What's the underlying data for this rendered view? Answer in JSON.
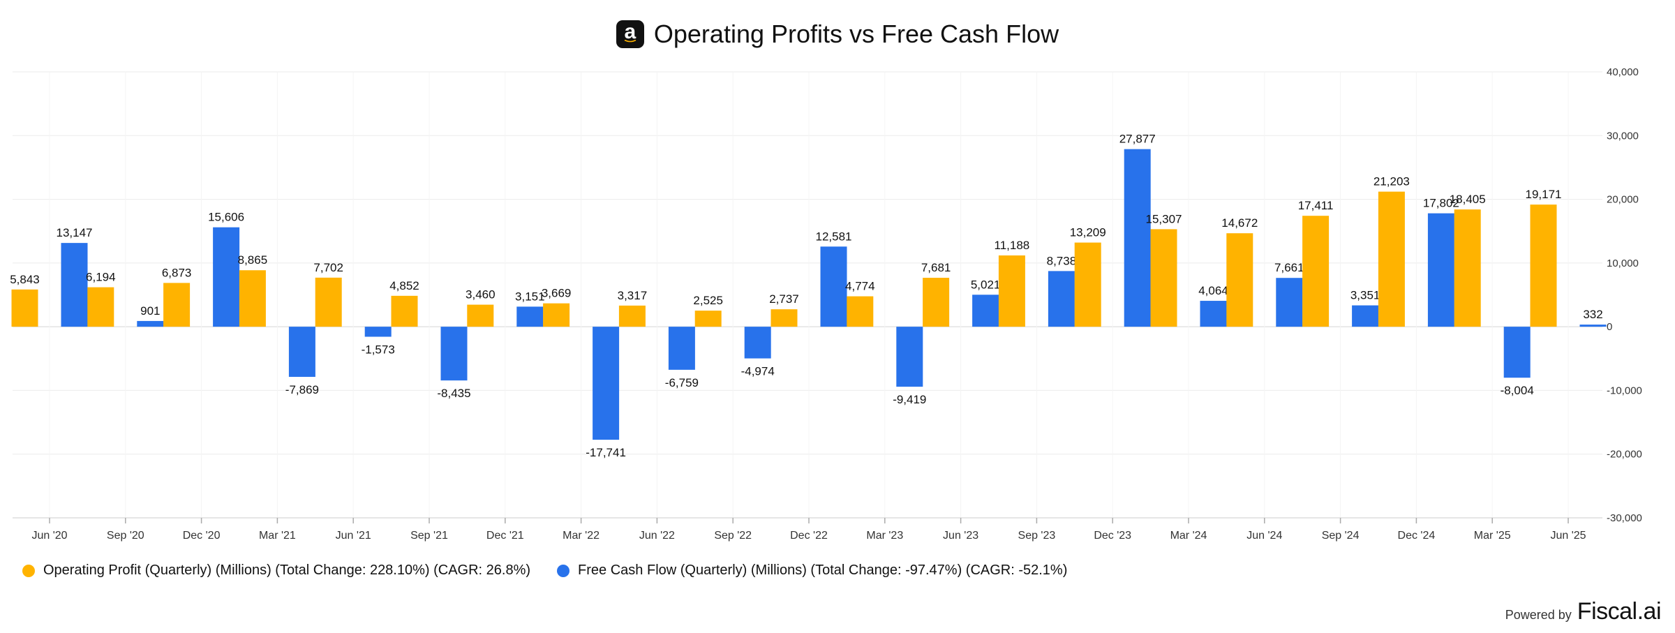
{
  "chart_title": "Operating Profits vs Free Cash Flow",
  "logo_letter": "a",
  "footer": {
    "powered_by": "Powered by",
    "brand": "Fiscal.ai"
  },
  "colors": {
    "operating_profit": "#FFB300",
    "free_cash_flow": "#2872EB",
    "grid": "#EBEBEB",
    "axis": "#DDDDDD"
  },
  "icons": {
    "logo": "amazon-logo-icon"
  },
  "chart_data": {
    "type": "bar",
    "title": "Operating Profits vs Free Cash Flow",
    "categories": [
      "Jun '20",
      "Sep '20",
      "Dec '20",
      "Mar '21",
      "Jun '21",
      "Sep '21",
      "Dec '21",
      "Mar '22",
      "Jun '22",
      "Sep '22",
      "Dec '22",
      "Mar '23",
      "Jun '23",
      "Sep '23",
      "Dec '23",
      "Mar '24",
      "Jun '24",
      "Sep '24",
      "Dec '24",
      "Mar '25",
      "Jun '25"
    ],
    "series": [
      {
        "name": "Operating Profit (Quarterly) (Millions) (Total Change: 228.10%) (CAGR: 26.8%)",
        "values": [
          5843,
          6194,
          6873,
          8865,
          7702,
          4852,
          3460,
          3669,
          3317,
          2525,
          2737,
          4774,
          7681,
          11188,
          13209,
          15307,
          14672,
          17411,
          21203,
          18405,
          19171
        ]
      },
      {
        "name": "Free Cash Flow (Quarterly) (Millions) (Total Change: -97.47%) (CAGR: -52.1%)",
        "values": [
          13147,
          901,
          15606,
          -7869,
          -1573,
          -8435,
          3151,
          -17741,
          -6759,
          -4974,
          12581,
          -9419,
          5021,
          8738,
          27877,
          4064,
          7661,
          3351,
          17802,
          -8004,
          332
        ]
      }
    ],
    "y_ticks": [
      "40,000",
      "30,000",
      "20,000",
      "10,000",
      "0",
      "-10,000",
      "-20,000",
      "-30,000"
    ],
    "ylim": [
      -30000,
      40000
    ],
    "y_axis_position": "right",
    "grid": true,
    "legend_position": "bottom-left"
  }
}
